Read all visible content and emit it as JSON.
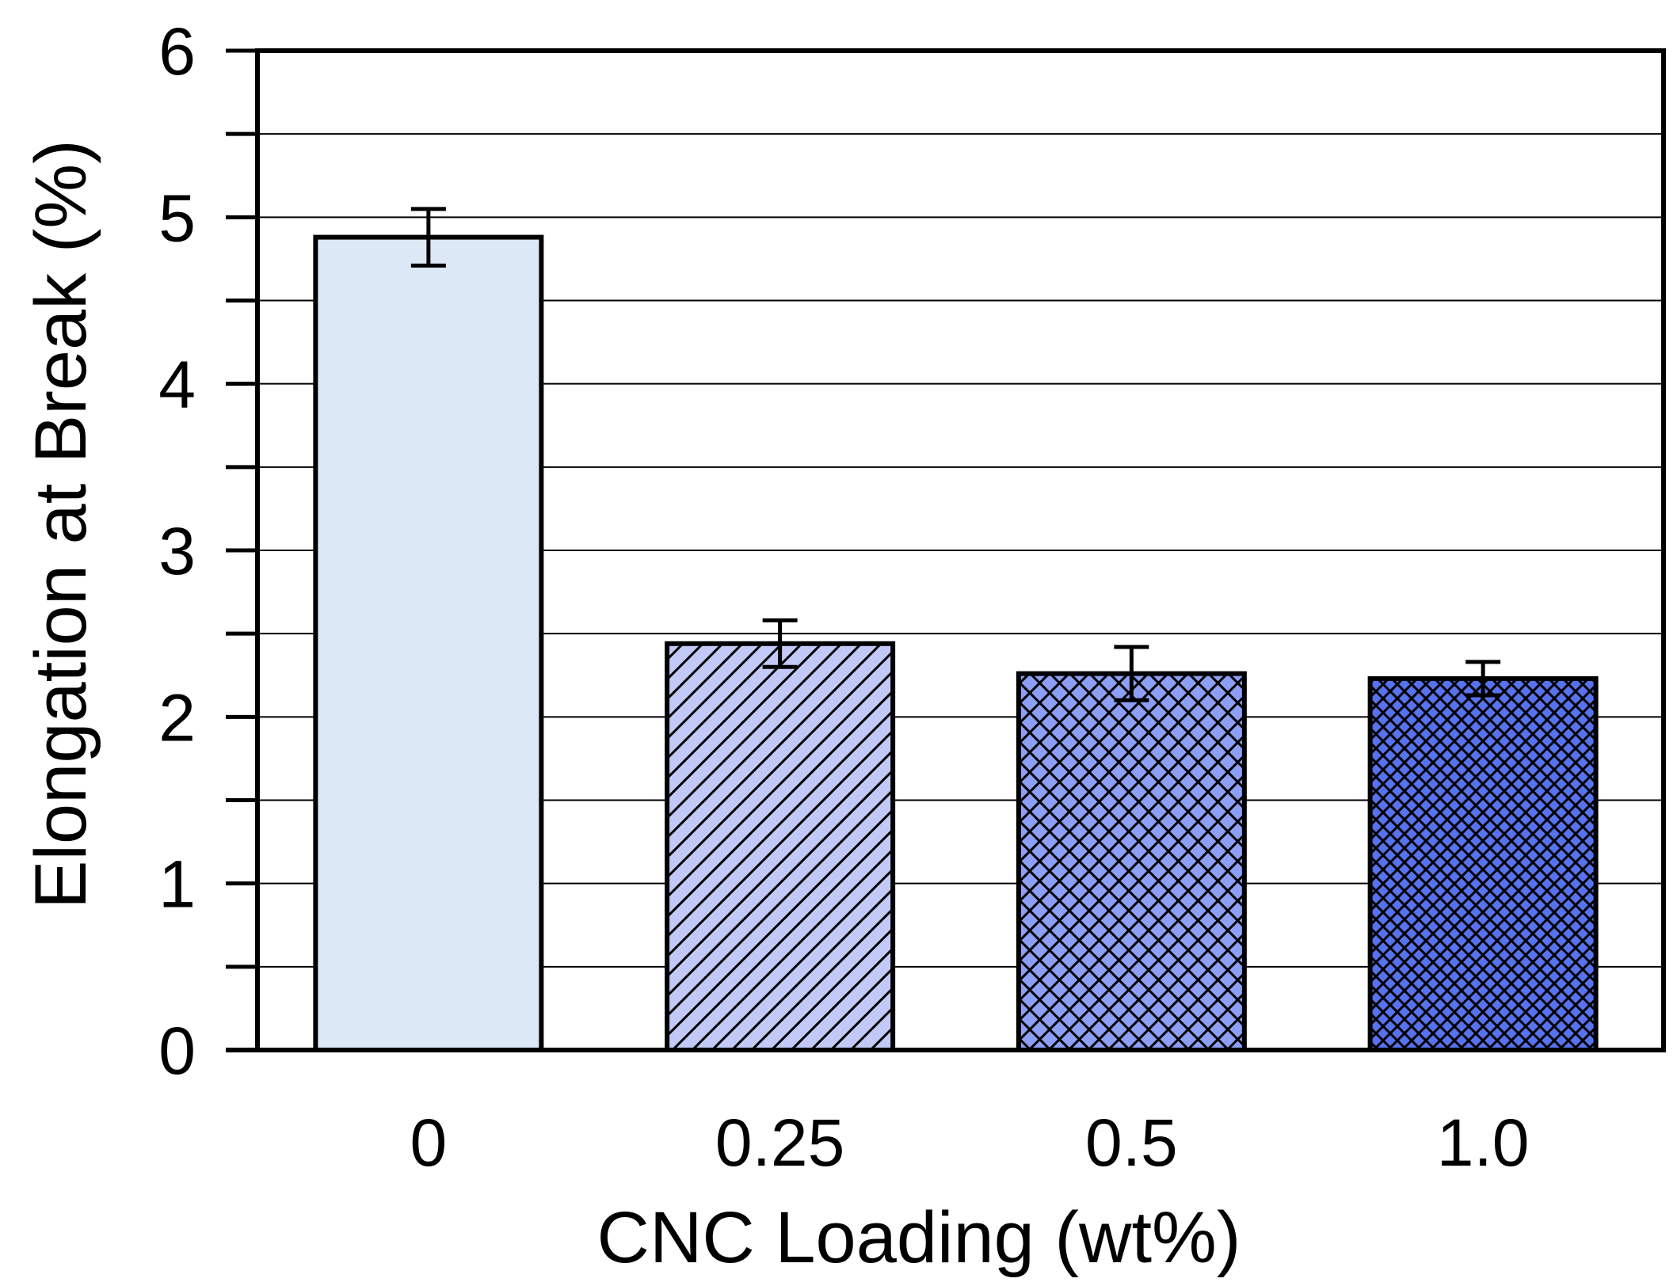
{
  "chart_data": {
    "type": "bar",
    "title": "",
    "xlabel": "CNC Loading (wt%)",
    "ylabel": "Elongation at Break (%)",
    "categories": [
      "0",
      "0.25",
      "0.5",
      "1.0"
    ],
    "values": [
      4.88,
      2.44,
      2.26,
      2.23
    ],
    "errors": [
      0.17,
      0.14,
      0.16,
      0.1
    ],
    "ylim": [
      0,
      6
    ],
    "yticks": [
      "0",
      "1",
      "2",
      "3",
      "4",
      "5",
      "6"
    ],
    "grid": true,
    "bar_fills": [
      "#dde8f7",
      "#c3c9f7",
      "#8c9ff5",
      "#5672ee"
    ],
    "bar_patterns": [
      "none",
      "diagonal",
      "crosshatch",
      "fine-crosshatch"
    ]
  }
}
